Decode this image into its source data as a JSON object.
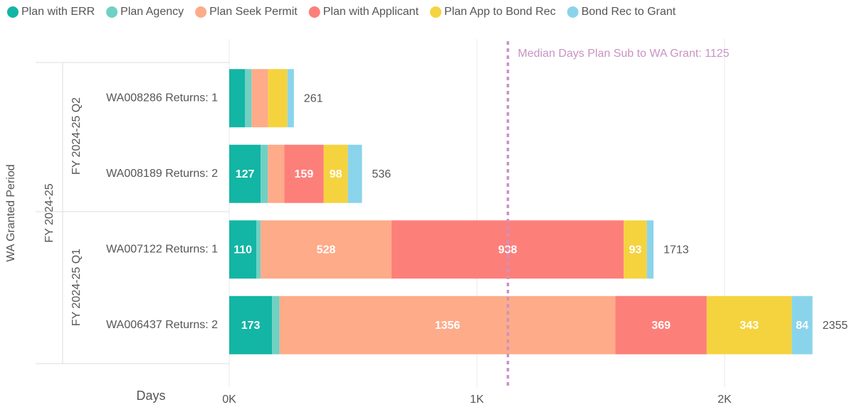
{
  "chart_data": {
    "type": "stacked-bar-horizontal",
    "y_axis_label": "WA Granted Period",
    "x_axis_label": "Days",
    "outer_group": "FY 2024-25",
    "groups": [
      {
        "name": "FY 2024-25 Q2",
        "categories": [
          "WA008286 Returns: 1",
          "WA008189 Returns: 2"
        ]
      },
      {
        "name": "FY 2024-25 Q1",
        "categories": [
          "WA007122 Returns: 1",
          "WA006437 Returns: 2"
        ]
      }
    ],
    "series": [
      {
        "name": "Plan with ERR",
        "color": "#13b5a4",
        "values": [
          64,
          127,
          110,
          173
        ]
      },
      {
        "name": "Plan Agency",
        "color": "#6ed1c3",
        "values": [
          26,
          29,
          17,
          30
        ]
      },
      {
        "name": "Plan Seek Permit",
        "color": "#fdab89",
        "values": [
          67,
          66,
          528,
          1356
        ]
      },
      {
        "name": "Plan with Applicant",
        "color": "#fd7f7a",
        "values": [
          null,
          159,
          938,
          369
        ]
      },
      {
        "name": "Plan App to Bond Rec",
        "color": "#f5d33f",
        "values": [
          78,
          98,
          93,
          343
        ]
      },
      {
        "name": "Bond Rec to Grant",
        "color": "#8ad4eb",
        "values": [
          26,
          57,
          27,
          84
        ]
      }
    ],
    "totals": [
      261,
      536,
      1713,
      2355
    ],
    "xlim": [
      0,
      2400
    ],
    "xticks": [
      {
        "value": 0,
        "label": "0K"
      },
      {
        "value": 1000,
        "label": "1K"
      },
      {
        "value": 2000,
        "label": "2K"
      }
    ],
    "grid": true,
    "reference_line": {
      "value": 1125,
      "label": "Median Days Plan Sub to WA Grant: 1125",
      "color": "#c893c4"
    },
    "legend": "top"
  }
}
